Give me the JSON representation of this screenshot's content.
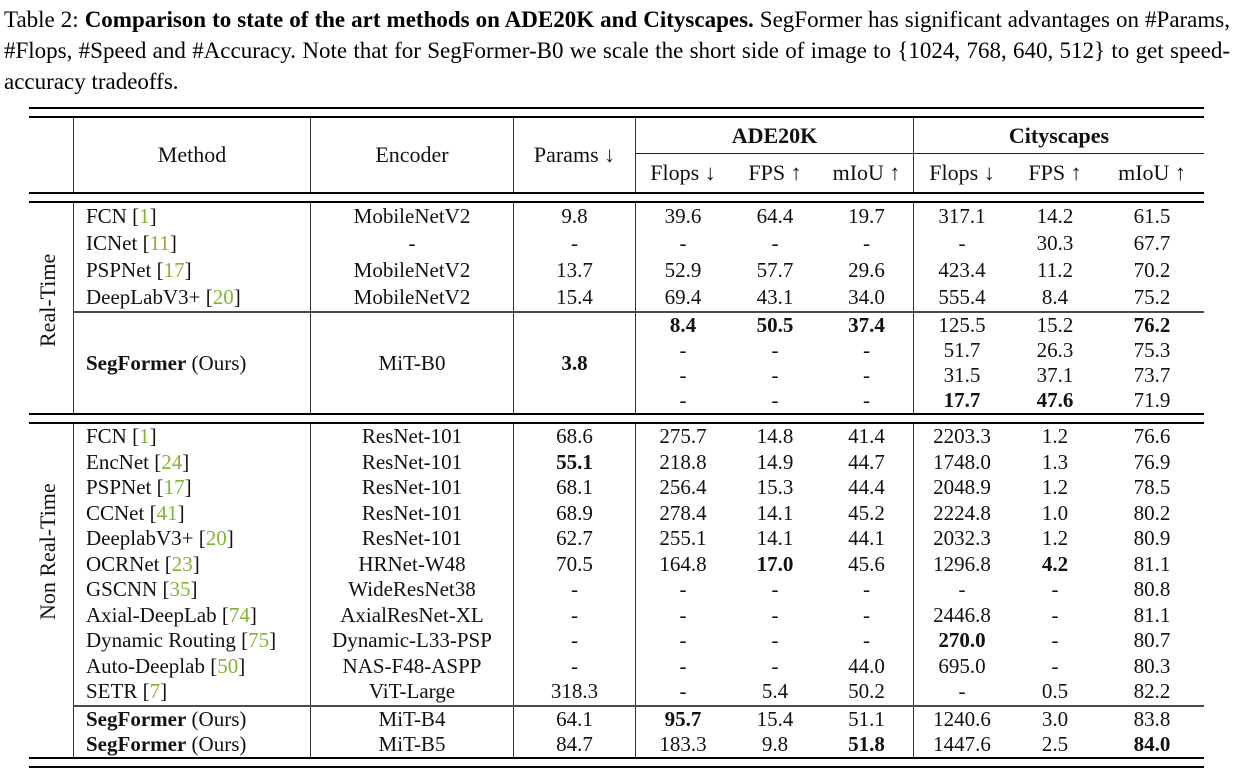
{
  "caption": {
    "label": "Table 2: ",
    "bold": "Comparison to state of the art methods on ADE20K and Cityscapes.",
    "text": " SegFormer has significant advantages on #Params, #Flops, #Speed and #Accuracy. Note that for SegFormer-B0 we scale the short side of image to {1024, 768, 640, 512} to get speed-accuracy tradeoffs."
  },
  "colors": {
    "citation": "#82b532",
    "rule": "#000000"
  },
  "table": {
    "row_labels": {
      "real_time": "Real-Time",
      "non_real_time": "Non Real-Time"
    },
    "header": {
      "method": "Method",
      "encoder": "Encoder",
      "params": "Params ↓",
      "group1": "ADE20K",
      "group2": "Cityscapes",
      "flops": "Flops ↓",
      "fps": "FPS ↑",
      "miou": "mIoU ↑"
    },
    "sections": [
      {
        "id": "real-time-baselines",
        "rows": [
          {
            "method": {
              "name": "FCN",
              "cite": "1"
            },
            "encoder": "MobileNetV2",
            "cells": [
              "9.8",
              "39.6",
              "64.4",
              "19.7",
              "317.1",
              "14.2",
              "61.5"
            ],
            "bold": []
          },
          {
            "method": {
              "name": "ICNet",
              "cite": "11"
            },
            "encoder": "-",
            "cells": [
              "-",
              "-",
              "-",
              "-",
              "-",
              "30.3",
              "67.7"
            ],
            "bold": []
          },
          {
            "method": {
              "name": "PSPNet",
              "cite": "17"
            },
            "encoder": "MobileNetV2",
            "cells": [
              "13.7",
              "52.9",
              "57.7",
              "29.6",
              "423.4",
              "11.2",
              "70.2"
            ],
            "bold": []
          },
          {
            "method": {
              "name": "DeepLabV3+",
              "cite": "20"
            },
            "encoder": "MobileNetV2",
            "cells": [
              "15.4",
              "69.4",
              "43.1",
              "34.0",
              "555.4",
              "8.4",
              "75.2"
            ],
            "bold": []
          }
        ]
      },
      {
        "id": "segformer-b0",
        "merged": {
          "method": {
            "name": "SegFormer",
            "suffix": " (Ours)",
            "bold_name": true
          },
          "encoder": "MiT-B0",
          "params": "3.8",
          "params_bold": true
        },
        "rows": [
          {
            "cells": [
              "8.4",
              "50.5",
              "37.4",
              "125.5",
              "15.2",
              "76.2"
            ],
            "bold": [
              0,
              1,
              2,
              5
            ]
          },
          {
            "cells": [
              "-",
              "-",
              "-",
              "51.7",
              "26.3",
              "75.3"
            ],
            "bold": []
          },
          {
            "cells": [
              "-",
              "-",
              "-",
              "31.5",
              "37.1",
              "73.7"
            ],
            "bold": []
          },
          {
            "cells": [
              "-",
              "-",
              "-",
              "17.7",
              "47.6",
              "71.9"
            ],
            "bold": [
              3,
              4
            ]
          }
        ]
      },
      {
        "id": "non-real-time",
        "rows": [
          {
            "method": {
              "name": "FCN",
              "cite": "1"
            },
            "encoder": "ResNet-101",
            "cells": [
              "68.6",
              "275.7",
              "14.8",
              "41.4",
              "2203.3",
              "1.2",
              "76.6"
            ],
            "bold": []
          },
          {
            "method": {
              "name": "EncNet",
              "cite": "24"
            },
            "encoder": "ResNet-101",
            "cells": [
              "55.1",
              "218.8",
              "14.9",
              "44.7",
              "1748.0",
              "1.3",
              "76.9"
            ],
            "bold": [
              0
            ]
          },
          {
            "method": {
              "name": "PSPNet",
              "cite": "17"
            },
            "encoder": "ResNet-101",
            "cells": [
              "68.1",
              "256.4",
              "15.3",
              "44.4",
              "2048.9",
              "1.2",
              "78.5"
            ],
            "bold": []
          },
          {
            "method": {
              "name": "CCNet",
              "cite": "41"
            },
            "encoder": "ResNet-101",
            "cells": [
              "68.9",
              "278.4",
              "14.1",
              "45.2",
              "2224.8",
              "1.0",
              "80.2"
            ],
            "bold": []
          },
          {
            "method": {
              "name": "DeeplabV3+",
              "cite": "20"
            },
            "encoder": "ResNet-101",
            "cells": [
              "62.7",
              "255.1",
              "14.1",
              "44.1",
              "2032.3",
              "1.2",
              "80.9"
            ],
            "bold": []
          },
          {
            "method": {
              "name": "OCRNet",
              "cite": "23"
            },
            "encoder": "HRNet-W48",
            "cells": [
              "70.5",
              "164.8",
              "17.0",
              "45.6",
              "1296.8",
              "4.2",
              "81.1"
            ],
            "bold": [
              2,
              5
            ]
          },
          {
            "method": {
              "name": "GSCNN",
              "cite": "35"
            },
            "encoder": "WideResNet38",
            "cells": [
              "-",
              "-",
              "-",
              "-",
              "-",
              "-",
              "80.8"
            ],
            "bold": []
          },
          {
            "method": {
              "name": "Axial-DeepLab",
              "cite": "74"
            },
            "encoder": "AxialResNet-XL",
            "cells": [
              "-",
              "-",
              "-",
              "-",
              "2446.8",
              "-",
              "81.1"
            ],
            "bold": []
          },
          {
            "method": {
              "name": "Dynamic Routing",
              "cite": "75"
            },
            "encoder": "Dynamic-L33-PSP",
            "cells": [
              "-",
              "-",
              "-",
              "-",
              "270.0",
              "-",
              "80.7"
            ],
            "bold": [
              4
            ]
          },
          {
            "method": {
              "name": "Auto-Deeplab",
              "cite": "50"
            },
            "encoder": "NAS-F48-ASPP",
            "cells": [
              "-",
              "-",
              "-",
              "44.0",
              "695.0",
              "-",
              "80.3"
            ],
            "bold": []
          },
          {
            "method": {
              "name": "SETR",
              "cite": "7"
            },
            "encoder": "ViT-Large",
            "cells": [
              "318.3",
              "-",
              "5.4",
              "50.2",
              "-",
              "0.5",
              "82.2"
            ],
            "bold": []
          }
        ]
      },
      {
        "id": "segformer-b4-b5",
        "rows": [
          {
            "method": {
              "name": "SegFormer",
              "suffix": " (Ours)",
              "bold_name": true
            },
            "encoder": "MiT-B4",
            "cells": [
              "64.1",
              "95.7",
              "15.4",
              "51.1",
              "1240.6",
              "3.0",
              "83.8"
            ],
            "bold": [
              1
            ]
          },
          {
            "method": {
              "name": "SegFormer",
              "suffix": " (Ours)",
              "bold_name": true
            },
            "encoder": "MiT-B5",
            "cells": [
              "84.7",
              "183.3",
              "9.8",
              "51.8",
              "1447.6",
              "2.5",
              "84.0"
            ],
            "bold": [
              3,
              6
            ]
          }
        ]
      }
    ]
  }
}
